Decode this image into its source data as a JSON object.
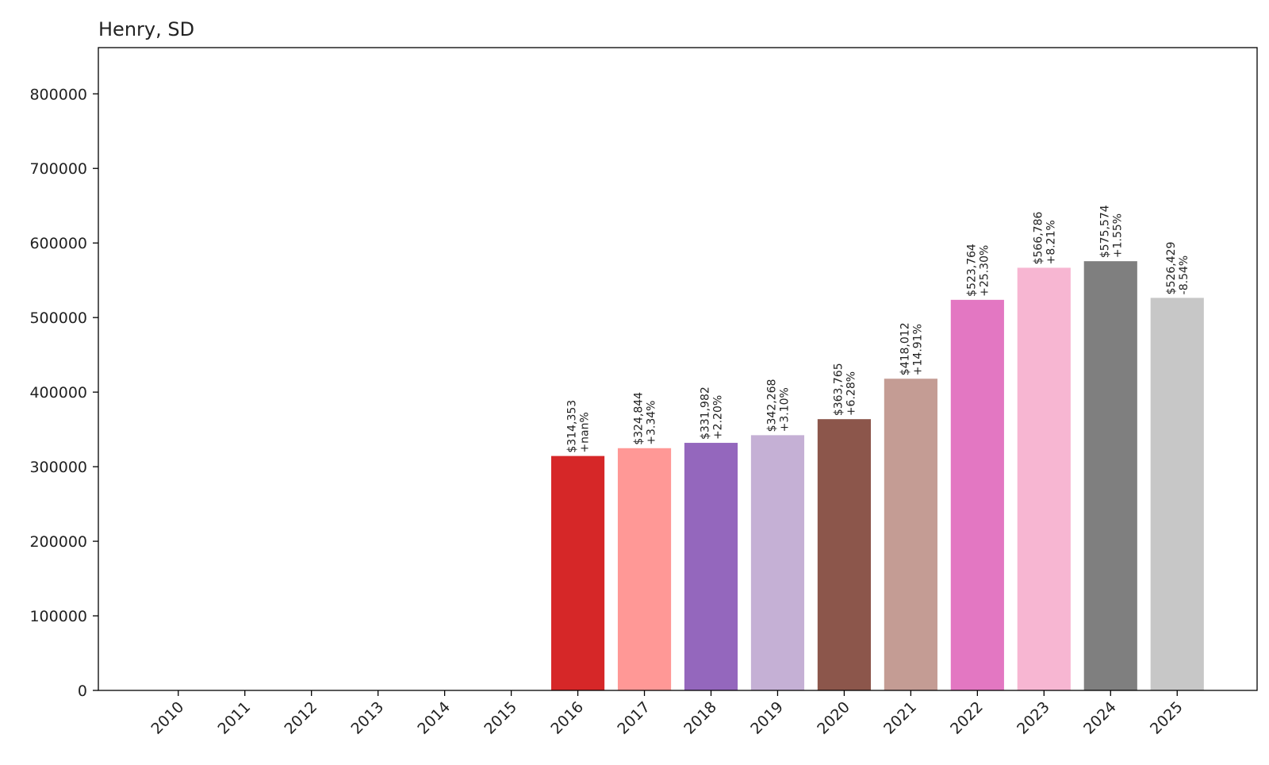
{
  "chart_data": {
    "type": "bar",
    "title": "Henry, SD",
    "xlabel": "",
    "ylabel": "",
    "categories": [
      "2010",
      "2011",
      "2012",
      "2013",
      "2014",
      "2015",
      "2016",
      "2017",
      "2018",
      "2019",
      "2020",
      "2021",
      "2022",
      "2023",
      "2024",
      "2025"
    ],
    "values": [
      0,
      0,
      0,
      0,
      0,
      0,
      314353,
      324844,
      331982,
      342268,
      363765,
      418012,
      523764,
      566786,
      575574,
      526429
    ],
    "bar_labels": [
      "",
      "",
      "",
      "",
      "",
      "",
      "$314,353\n+nan%",
      "$324,844\n+3.34%",
      "$331,982\n+2.20%",
      "$342,268\n+3.10%",
      "$363,765\n+6.28%",
      "$418,012\n+14.91%",
      "$523,764\n+25.30%",
      "$566,786\n+8.21%",
      "$575,574\n+1.55%",
      "$526,429\n-8.54%"
    ],
    "colors": [
      "#1f77b4",
      "#aec7e8",
      "#ff7f0e",
      "#ffbb78",
      "#2ca02c",
      "#98df8a",
      "#d62728",
      "#ff9896",
      "#9467bd",
      "#c5b0d5",
      "#8c564b",
      "#c49c94",
      "#e377c2",
      "#f7b6d2",
      "#7f7f7f",
      "#c7c7c7"
    ],
    "yticks": [
      0,
      100000,
      200000,
      300000,
      400000,
      500000,
      600000,
      700000,
      800000
    ],
    "ylim": [
      0,
      862000
    ],
    "grid": false,
    "legend": "none"
  }
}
